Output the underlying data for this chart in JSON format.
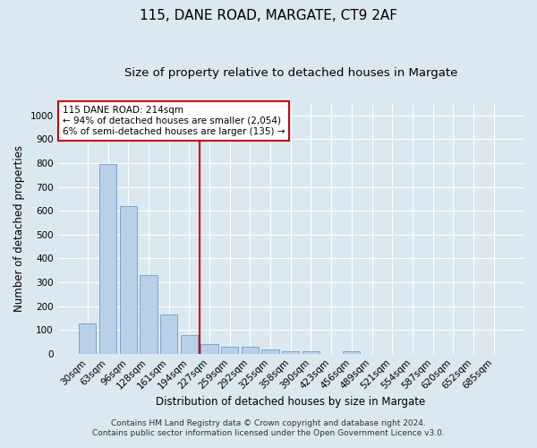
{
  "title": "115, DANE ROAD, MARGATE, CT9 2AF",
  "subtitle": "Size of property relative to detached houses in Margate",
  "xlabel": "Distribution of detached houses by size in Margate",
  "ylabel": "Number of detached properties",
  "categories": [
    "30sqm",
    "63sqm",
    "96sqm",
    "128sqm",
    "161sqm",
    "194sqm",
    "227sqm",
    "259sqm",
    "292sqm",
    "325sqm",
    "358sqm",
    "390sqm",
    "423sqm",
    "456sqm",
    "489sqm",
    "521sqm",
    "554sqm",
    "587sqm",
    "620sqm",
    "652sqm",
    "685sqm"
  ],
  "values": [
    125,
    795,
    620,
    330,
    163,
    78,
    40,
    28,
    28,
    17,
    10,
    10,
    0,
    10,
    0,
    0,
    0,
    0,
    0,
    0,
    0
  ],
  "bar_color": "#b8d0e8",
  "bar_edge_color": "#6090c0",
  "vline_color": "#cc0000",
  "annotation_text": "115 DANE ROAD: 214sqm\n← 94% of detached houses are smaller (2,054)\n6% of semi-detached houses are larger (135) →",
  "annotation_box_color": "#cc0000",
  "annotation_bg_color": "#ffffff",
  "ylim": [
    0,
    1050
  ],
  "yticks": [
    0,
    100,
    200,
    300,
    400,
    500,
    600,
    700,
    800,
    900,
    1000
  ],
  "background_color": "#dce8f0",
  "plot_bg_color": "#dce8f0",
  "grid_color": "#ffffff",
  "footer_line1": "Contains HM Land Registry data © Crown copyright and database right 2024.",
  "footer_line2": "Contains public sector information licensed under the Open Government Licence v3.0.",
  "title_fontsize": 11,
  "subtitle_fontsize": 9.5,
  "axis_label_fontsize": 8.5,
  "tick_fontsize": 7.5,
  "annotation_fontsize": 7.5,
  "footer_fontsize": 6.5
}
